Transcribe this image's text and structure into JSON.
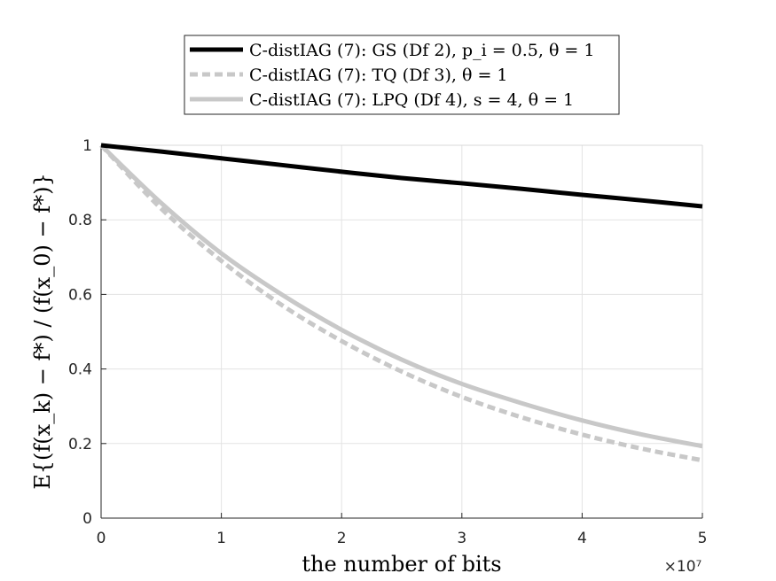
{
  "chart_data": {
    "type": "line",
    "xlabel": "the number of bits",
    "ylabel": "E{(f(x_k) − f*) / (f(x_0) − f*)}",
    "x_exponent": "×10⁷",
    "xlim": [
      0,
      5
    ],
    "ylim": [
      0,
      1
    ],
    "xticks": [
      "0",
      "1",
      "2",
      "3",
      "4",
      "5"
    ],
    "yticks": [
      "0",
      "0.2",
      "0.4",
      "0.6",
      "0.8",
      "1"
    ],
    "grid": true,
    "legend_position": "top-center",
    "series": [
      {
        "name": "C-distIAG (7): GS (Df 2), p_i = 0.5, θ = 1",
        "color": "#000000",
        "style": "solid",
        "x": [
          0,
          0.5,
          1,
          1.5,
          2,
          2.5,
          3,
          3.5,
          4,
          4.5,
          5
        ],
        "y": [
          1.0,
          0.983,
          0.965,
          0.947,
          0.929,
          0.912,
          0.898,
          0.883,
          0.867,
          0.852,
          0.836
        ]
      },
      {
        "name": "C-distIAG (7): TQ (Df 3), θ = 1",
        "color": "#c8c8c8",
        "style": "dashed",
        "x": [
          0,
          0.5,
          1,
          1.5,
          2,
          2.5,
          3,
          3.5,
          4,
          4.5,
          5
        ],
        "y": [
          1.0,
          0.83,
          0.69,
          0.572,
          0.475,
          0.393,
          0.325,
          0.27,
          0.224,
          0.186,
          0.155
        ]
      },
      {
        "name": "C-distIAG (7): LPQ (Df 4), s = 4, θ = 1",
        "color": "#c8c8c8",
        "style": "solid",
        "x": [
          0,
          0.5,
          1,
          1.5,
          2,
          2.5,
          3,
          3.5,
          4,
          4.5,
          5
        ],
        "y": [
          1.0,
          0.845,
          0.71,
          0.6,
          0.505,
          0.425,
          0.36,
          0.308,
          0.262,
          0.224,
          0.193
        ]
      }
    ]
  }
}
